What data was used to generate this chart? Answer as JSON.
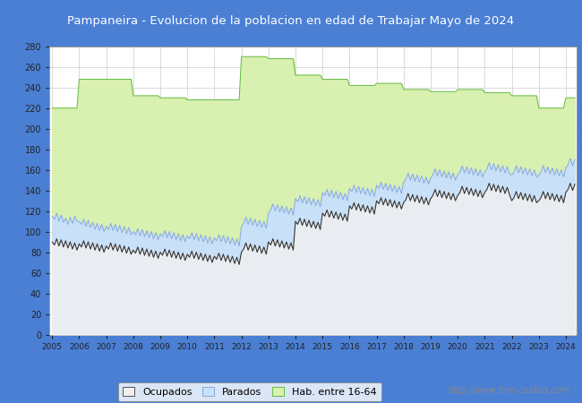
{
  "title": "Pampaneira - Evolucion de la poblacion en edad de Trabajar Mayo de 2024",
  "title_bg_color": "#4a7fd4",
  "title_text_color": "#ffffff",
  "chart_bg_color": "#ffffff",
  "outer_bg_color": "#4a7fd4",
  "ylim": [
    0,
    280
  ],
  "yticks": [
    0,
    20,
    40,
    60,
    80,
    100,
    120,
    140,
    160,
    180,
    200,
    220,
    240,
    260,
    280
  ],
  "x_start_year": 2005,
  "x_end_year": 2024,
  "watermark": "http://www.foro-ciudad.com",
  "legend_labels": [
    "Ocupados",
    "Parados",
    "Hab. entre 16-64"
  ],
  "hab_fill_color": "#d8f0b0",
  "hab_line_color": "#66bb44",
  "parados_fill_color": "#c8e0f8",
  "parados_line_color": "#88aadd",
  "ocupados_fill_color": "#f0f0f0",
  "ocupados_line_color": "#333333",
  "grid_color": "#cccccc",
  "hab_16_64": [
    220,
    220,
    220,
    220,
    220,
    220,
    220,
    220,
    220,
    220,
    220,
    220,
    248,
    248,
    248,
    248,
    248,
    248,
    248,
    248,
    248,
    248,
    248,
    248,
    248,
    248,
    248,
    248,
    248,
    248,
    248,
    248,
    248,
    248,
    248,
    248,
    232,
    232,
    232,
    232,
    232,
    232,
    232,
    232,
    232,
    232,
    232,
    232,
    230,
    230,
    230,
    230,
    230,
    230,
    230,
    230,
    230,
    230,
    230,
    230,
    228,
    228,
    228,
    228,
    228,
    228,
    228,
    228,
    228,
    228,
    228,
    228,
    228,
    228,
    228,
    228,
    228,
    228,
    228,
    228,
    228,
    228,
    228,
    228,
    270,
    270,
    270,
    270,
    270,
    270,
    270,
    270,
    270,
    270,
    270,
    270,
    268,
    268,
    268,
    268,
    268,
    268,
    268,
    268,
    268,
    268,
    268,
    268,
    252,
    252,
    252,
    252,
    252,
    252,
    252,
    252,
    252,
    252,
    252,
    252,
    248,
    248,
    248,
    248,
    248,
    248,
    248,
    248,
    248,
    248,
    248,
    248,
    242,
    242,
    242,
    242,
    242,
    242,
    242,
    242,
    242,
    242,
    242,
    242,
    244,
    244,
    244,
    244,
    244,
    244,
    244,
    244,
    244,
    244,
    244,
    244,
    238,
    238,
    238,
    238,
    238,
    238,
    238,
    238,
    238,
    238,
    238,
    238,
    236,
    236,
    236,
    236,
    236,
    236,
    236,
    236,
    236,
    236,
    236,
    236,
    238,
    238,
    238,
    238,
    238,
    238,
    238,
    238,
    238,
    238,
    238,
    238,
    235,
    235,
    235,
    235,
    235,
    235,
    235,
    235,
    235,
    235,
    235,
    235,
    232,
    232,
    232,
    232,
    232,
    232,
    232,
    232,
    232,
    232,
    232,
    232,
    220,
    220,
    220,
    220,
    220,
    220,
    220,
    220,
    220,
    220,
    220,
    220,
    230,
    230,
    230,
    230,
    230
  ],
  "parados": [
    115,
    112,
    118,
    110,
    116,
    109,
    113,
    107,
    114,
    108,
    115,
    110,
    110,
    107,
    112,
    105,
    111,
    104,
    109,
    102,
    108,
    101,
    107,
    100,
    105,
    102,
    108,
    101,
    107,
    100,
    106,
    99,
    105,
    98,
    104,
    97,
    100,
    97,
    103,
    96,
    102,
    95,
    101,
    94,
    100,
    93,
    99,
    92,
    98,
    95,
    101,
    94,
    100,
    93,
    99,
    92,
    98,
    91,
    97,
    90,
    96,
    93,
    99,
    92,
    98,
    91,
    97,
    90,
    96,
    89,
    95,
    88,
    94,
    91,
    97,
    90,
    96,
    89,
    95,
    88,
    94,
    87,
    93,
    86,
    105,
    108,
    114,
    107,
    113,
    106,
    112,
    105,
    111,
    104,
    110,
    103,
    118,
    121,
    127,
    120,
    126,
    119,
    125,
    118,
    124,
    117,
    123,
    116,
    132,
    129,
    135,
    128,
    134,
    127,
    133,
    126,
    132,
    125,
    131,
    124,
    138,
    135,
    141,
    134,
    140,
    133,
    139,
    132,
    138,
    131,
    137,
    130,
    142,
    139,
    145,
    138,
    144,
    137,
    143,
    136,
    142,
    135,
    141,
    134,
    145,
    142,
    148,
    141,
    147,
    140,
    146,
    139,
    145,
    138,
    144,
    137,
    148,
    151,
    157,
    150,
    156,
    149,
    155,
    148,
    154,
    147,
    153,
    146,
    152,
    155,
    161,
    154,
    160,
    153,
    159,
    152,
    158,
    151,
    157,
    150,
    155,
    158,
    164,
    157,
    163,
    156,
    162,
    155,
    161,
    154,
    160,
    153,
    158,
    161,
    167,
    160,
    166,
    159,
    165,
    158,
    164,
    157,
    163,
    156,
    155,
    158,
    164,
    157,
    163,
    156,
    162,
    155,
    161,
    154,
    160,
    153,
    155,
    158,
    164,
    157,
    163,
    156,
    162,
    155,
    161,
    154,
    160,
    153,
    162,
    165,
    171,
    164,
    170
  ],
  "ocupados": [
    90,
    87,
    93,
    86,
    92,
    85,
    91,
    84,
    90,
    83,
    89,
    82,
    88,
    85,
    91,
    84,
    90,
    83,
    89,
    82,
    88,
    81,
    87,
    80,
    86,
    83,
    89,
    82,
    88,
    81,
    87,
    80,
    86,
    79,
    85,
    78,
    82,
    79,
    85,
    78,
    84,
    77,
    83,
    76,
    82,
    75,
    81,
    74,
    80,
    77,
    83,
    76,
    82,
    75,
    81,
    74,
    80,
    73,
    79,
    72,
    78,
    75,
    81,
    74,
    80,
    73,
    79,
    72,
    78,
    71,
    77,
    70,
    76,
    73,
    79,
    72,
    78,
    71,
    77,
    70,
    76,
    69,
    75,
    68,
    80,
    83,
    89,
    82,
    88,
    81,
    87,
    80,
    86,
    79,
    85,
    78,
    90,
    87,
    93,
    86,
    92,
    85,
    91,
    84,
    90,
    83,
    89,
    82,
    110,
    107,
    113,
    106,
    112,
    105,
    111,
    104,
    110,
    103,
    109,
    102,
    118,
    115,
    121,
    114,
    120,
    113,
    119,
    112,
    118,
    111,
    117,
    110,
    125,
    122,
    128,
    121,
    127,
    120,
    126,
    119,
    125,
    118,
    124,
    117,
    130,
    127,
    133,
    126,
    132,
    125,
    131,
    124,
    130,
    123,
    129,
    122,
    128,
    131,
    137,
    130,
    136,
    129,
    135,
    128,
    134,
    127,
    133,
    126,
    132,
    135,
    141,
    134,
    140,
    133,
    139,
    132,
    138,
    131,
    137,
    130,
    135,
    138,
    144,
    137,
    143,
    136,
    142,
    135,
    141,
    134,
    140,
    133,
    138,
    141,
    147,
    140,
    146,
    139,
    145,
    138,
    144,
    137,
    143,
    136,
    130,
    133,
    139,
    132,
    138,
    131,
    137,
    130,
    136,
    129,
    135,
    128,
    130,
    133,
    139,
    132,
    138,
    131,
    137,
    130,
    136,
    129,
    135,
    128,
    138,
    141,
    147,
    140,
    146
  ]
}
